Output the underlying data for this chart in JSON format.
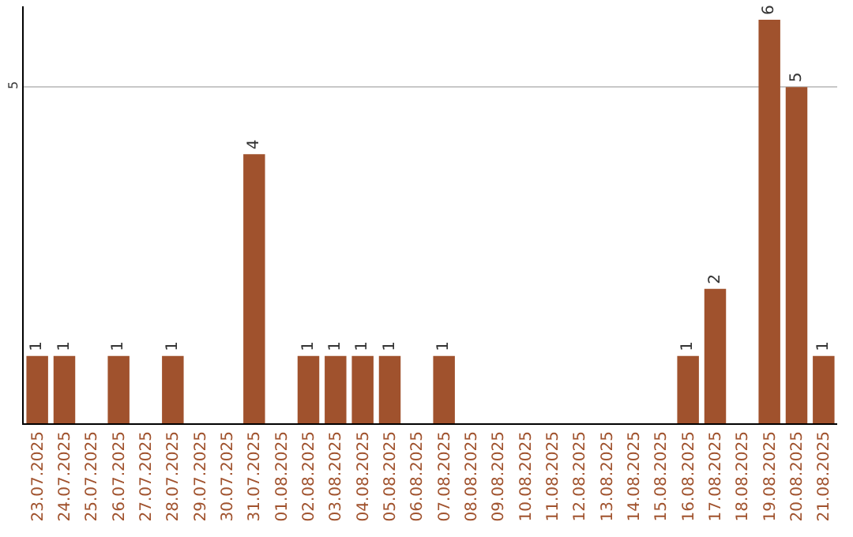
{
  "chart_data": {
    "type": "bar",
    "categories": [
      "23.07.2025",
      "24.07.2025",
      "25.07.2025",
      "26.07.2025",
      "27.07.2025",
      "28.07.2025",
      "29.07.2025",
      "30.07.2025",
      "31.07.2025",
      "01.08.2025",
      "02.08.2025",
      "03.08.2025",
      "04.08.2025",
      "05.08.2025",
      "06.08.2025",
      "07.08.2025",
      "08.08.2025",
      "09.08.2025",
      "10.08.2025",
      "11.08.2025",
      "12.08.2025",
      "13.08.2025",
      "14.08.2025",
      "15.08.2025",
      "16.08.2025",
      "17.08.2025",
      "18.08.2025",
      "19.08.2025",
      "20.08.2025",
      "21.08.2025"
    ],
    "values": [
      1,
      1,
      0,
      1,
      0,
      1,
      0,
      0,
      4,
      0,
      1,
      1,
      1,
      1,
      0,
      1,
      0,
      0,
      0,
      0,
      0,
      0,
      0,
      0,
      1,
      2,
      0,
      6,
      5,
      1
    ],
    "value_labels": [
      "1",
      "1",
      null,
      "1",
      null,
      "1",
      null,
      null,
      "4",
      null,
      "1",
      "1",
      "1",
      "1",
      null,
      "1",
      null,
      null,
      null,
      null,
      null,
      null,
      null,
      null,
      "1",
      "2",
      null,
      "6",
      "5",
      "1"
    ],
    "color": "#a0522d",
    "ylim": [
      0,
      6.2
    ],
    "yticks": [
      5
    ],
    "grid": "y"
  }
}
